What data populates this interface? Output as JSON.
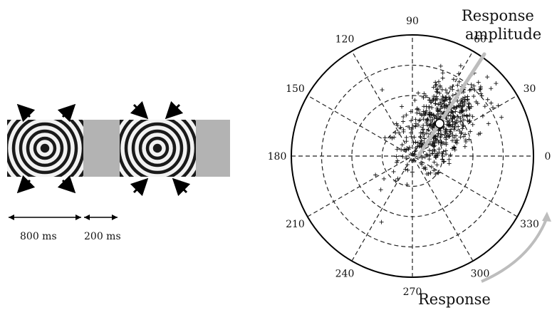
{
  "stimulus": {
    "durations": [
      {
        "label": "800 ms"
      },
      {
        "label": "200 ms"
      }
    ],
    "colors": {
      "ring_dark": "#1a1a1a",
      "ring_light": "#f2f2f2",
      "blank": "#b3b3b3",
      "arrow": "#000000"
    }
  },
  "polar": {
    "angle_labels": [
      "0",
      "30",
      "60",
      "90",
      "120",
      "150",
      "180",
      "210",
      "240",
      "270",
      "300",
      "330"
    ],
    "annotations": {
      "amplitude_line1": "Response",
      "amplitude_line2": "amplitude",
      "phase_label": "Response"
    },
    "colors": {
      "circle": "#000000",
      "grid": "#222222",
      "points": "#111111",
      "pointer": "#bdbdbd",
      "mean_marker": "#ffffff"
    },
    "mean_response": {
      "angle_deg": 50,
      "radius_fraction": 0.35
    }
  }
}
